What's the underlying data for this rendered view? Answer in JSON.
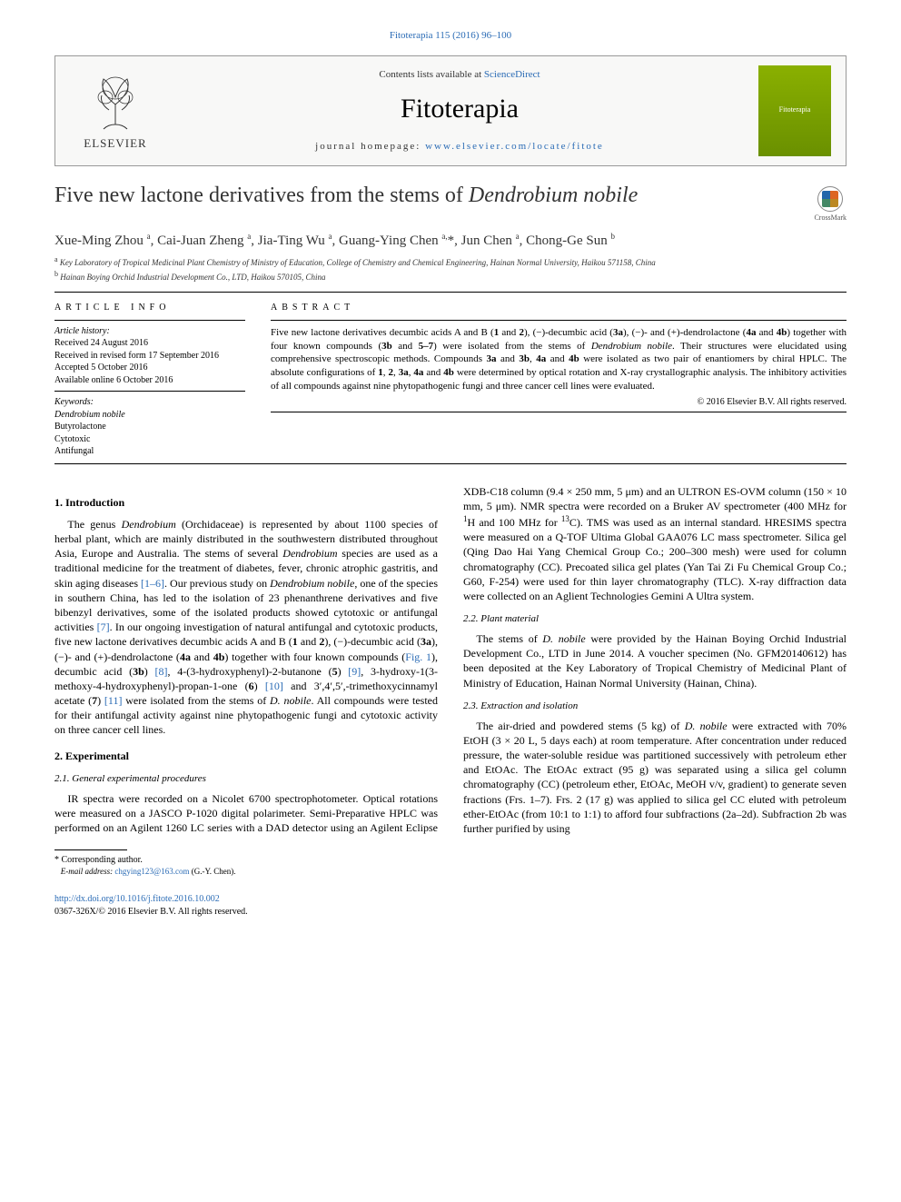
{
  "top_link": "Fitoterapia 115 (2016) 96–100",
  "header": {
    "publisher": "ELSEVIER",
    "contents_prefix": "Contents lists available at ",
    "contents_link": "ScienceDirect",
    "journal": "Fitoterapia",
    "homepage_prefix": "journal homepage: ",
    "homepage_url": "www.elsevier.com/locate/fitote",
    "cover_label": "Fitoterapia"
  },
  "title_html": "Five new lactone derivatives from the stems of <em>Dendrobium nobile</em>",
  "crossmark_label": "CrossMark",
  "authors_html": "Xue-Ming Zhou <sup>a</sup>, Cai-Juan Zheng <sup>a</sup>, Jia-Ting Wu <sup>a</sup>, Guang-Ying Chen <sup>a,</sup>*, Jun Chen <sup>a</sup>, Chong-Ge Sun <sup>b</sup>",
  "affiliations": [
    "<sup>a</sup> Key Laboratory of Tropical Medicinal Plant Chemistry of Ministry of Education, College of Chemistry and Chemical Engineering, Hainan Normal University, Haikou 571158, China",
    "<sup>b</sup> Hainan Boying Orchid Industrial Development Co., LTD, Haikou 570105, China"
  ],
  "article_info": {
    "head": "ARTICLE INFO",
    "history_label": "Article history:",
    "history": [
      "Received 24 August 2016",
      "Received in revised form 17 September 2016",
      "Accepted 5 October 2016",
      "Available online 6 October 2016"
    ],
    "keywords_label": "Keywords:",
    "keywords": [
      "Dendrobium nobile",
      "Butyrolactone",
      "Cytotoxic",
      "Antifungal"
    ]
  },
  "abstract": {
    "head": "ABSTRACT",
    "text_html": "Five new lactone derivatives decumbic acids A and B (<b>1</b> and <b>2</b>), (−)-decumbic acid (<b>3a</b>), (−)- and (+)-dendrolactone (<b>4a</b> and <b>4b</b>) together with four known compounds (<b>3b</b> and <b>5–7</b>) were isolated from the stems of <em>Dendrobium nobile</em>. Their structures were elucidated using comprehensive spectroscopic methods. Compounds <b>3a</b> and <b>3b</b>, <b>4a</b> and <b>4b</b> were isolated as two pair of enantiomers by chiral HPLC. The absolute configurations of <b>1</b>, <b>2</b>, <b>3a</b>, <b>4a</b> and <b>4b</b> were determined by optical rotation and X-ray crystallographic analysis. The inhibitory activities of all compounds against nine phytopathogenic fungi and three cancer cell lines were evaluated.",
    "copyright": "© 2016 Elsevier B.V. All rights reserved."
  },
  "sections": {
    "s1_head": "1. Introduction",
    "s1_p1_html": "The genus <em>Dendrobium</em> (Orchidaceae) is represented by about 1100 species of herbal plant, which are mainly distributed in the southwestern distributed throughout Asia, Europe and Australia. The stems of several <em>Dendrobium</em> species are used as a traditional medicine for the treatment of diabetes, fever, chronic atrophic gastritis, and skin aging diseases <span class='ref-link'>[1–6]</span>. Our previous study on <em>Dendrobium nobile</em>, one of the species in southern China, has led to the isolation of 23 phenanthrene derivatives and five bibenzyl derivatives, some of the isolated products showed cytotoxic or antifungal activities <span class='ref-link'>[7]</span>. In our ongoing investigation of natural antifungal and cytotoxic products, five new lactone derivatives decumbic acids A and B (<b>1</b> and <b>2</b>), (−)-decumbic acid (<b>3a</b>), (−)- and (+)-dendrolactone (<b>4a</b> and <b>4b</b>) together with four known compounds (<span class='ref-link'>Fig. 1</span>), decumbic acid (<b>3b</b>) <span class='ref-link'>[8]</span>, 4-(3-hydroxyphenyl)-2-butanone (<b>5</b>) <span class='ref-link'>[9]</span>, 3-hydroxy-1(3-methoxy-4-hydroxyphenyl)-propan-1-one (<b>6</b>) <span class='ref-link'>[10]</span> and 3′,4′,5′,-trimethoxycinnamyl acetate (<b>7</b>) <span class='ref-link'>[11]</span> were isolated from the stems of <em>D. nobile</em>. All compounds were tested for their antifungal activity against nine phytopathogenic fungi and cytotoxic activity on three cancer cell lines.",
    "s2_head": "2. Experimental",
    "s2_1_head": "2.1. General experimental procedures",
    "s2_1_p1_html": "IR spectra were recorded on a Nicolet 6700 spectrophotometer. Optical rotations were measured on a JASCO P-1020 digital polarimeter. Semi-Preparative HPLC was performed on an Agilent 1260 LC series with a DAD detector using an Agilent Eclipse XDB-C18 column (9.4 × 250 mm, 5 μm) and an ULTRON ES-OVM column (150 × 10 mm, 5 μm). NMR spectra were recorded on a Bruker AV spectrometer (400 MHz for <sup>1</sup>H and 100 MHz for <sup>13</sup>C). TMS was used as an internal standard. HRESIMS spectra were measured on a Q-TOF Ultima Global GAA076 LC mass spectrometer. Silica gel (Qing Dao Hai Yang Chemical Group Co.; 200–300 mesh) were used for column chromatography (CC). Precoated silica gel plates (Yan Tai Zi Fu Chemical Group Co.; G60, F-254) were used for thin layer chromatography (TLC). X-ray diffraction data were collected on an Aglient Technologies Gemini A Ultra system.",
    "s2_2_head": "2.2. Plant material",
    "s2_2_p1_html": "The stems of <em>D. nobile</em> were provided by the Hainan Boying Orchid Industrial Development Co., LTD in June 2014. A voucher specimen (No. GFM20140612) has been deposited at the Key Laboratory of Tropical Chemistry of Medicinal Plant of Ministry of Education, Hainan Normal University (Hainan, China).",
    "s2_3_head": "2.3. Extraction and isolation",
    "s2_3_p1_html": "The air-dried and powdered stems (5 kg) of <em>D. nobile</em> were extracted with 70% EtOH (3 × 20 L, 5 days each) at room temperature. After concentration under reduced pressure, the water-soluble residue was partitioned successively with petroleum ether and EtOAc. The EtOAc extract (95 g) was separated using a silica gel column chromatography (CC) (petroleum ether, EtOAc, MeOH v/v, gradient) to generate seven fractions (Frs. 1–7). Frs. 2 (17 g) was applied to silica gel CC eluted with petroleum ether-EtOAc (from 10:1 to 1:1) to afford four subfractions (2a–2d). Subfraction 2b was further purified by using"
  },
  "footnotes": {
    "corr": "* Corresponding author.",
    "email_label": "E-mail address: ",
    "email": "chgying123@163.com",
    "email_person": " (G.-Y. Chen)."
  },
  "footer": {
    "doi": "http://dx.doi.org/10.1016/j.fitote.2016.10.002",
    "issn_line": "0367-326X/© 2016 Elsevier B.V. All rights reserved."
  },
  "colors": {
    "link": "#2a6bb5",
    "cover_top": "#8ab000",
    "cover_bottom": "#6a9000",
    "text": "#000000",
    "bg": "#ffffff"
  }
}
